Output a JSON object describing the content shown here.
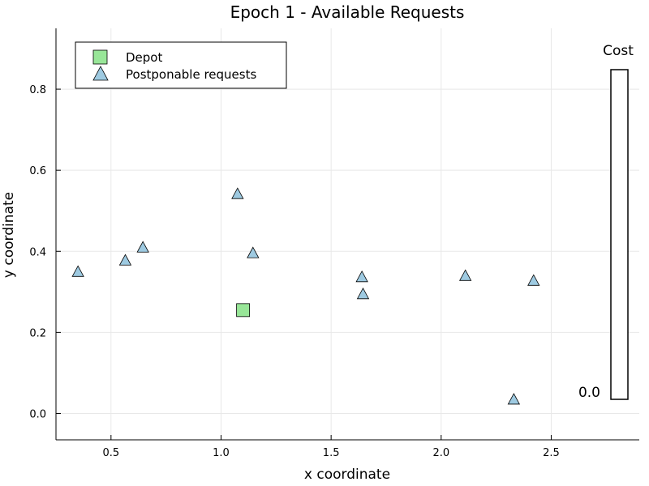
{
  "chart_data": {
    "type": "scatter",
    "title": "Epoch 1 - Available Requests",
    "xlabel": "x coordinate",
    "ylabel": "y coordinate",
    "xlim": [
      0.25,
      2.9
    ],
    "ylim": [
      -0.065,
      0.95
    ],
    "xticks": [
      0.5,
      1.0,
      1.5,
      2.0,
      2.5
    ],
    "xtick_labels": [
      "0.5",
      "1.0",
      "1.5",
      "2.0",
      "2.5"
    ],
    "yticks": [
      0.0,
      0.2,
      0.4,
      0.6,
      0.8
    ],
    "ytick_labels": [
      "0.0",
      "0.2",
      "0.4",
      "0.6",
      "0.8"
    ],
    "grid": true,
    "legend_position": "top-left",
    "series": [
      {
        "name": "Depot",
        "marker": "square",
        "color": "#98e698",
        "points": [
          [
            1.1,
            0.255
          ]
        ]
      },
      {
        "name": "Postponable requests",
        "marker": "triangle",
        "color": "#9ecae1",
        "points": [
          [
            0.35,
            0.35
          ],
          [
            0.565,
            0.378
          ],
          [
            0.645,
            0.41
          ],
          [
            1.075,
            0.542
          ],
          [
            1.145,
            0.396
          ],
          [
            1.64,
            0.337
          ],
          [
            1.645,
            0.295
          ],
          [
            2.11,
            0.34
          ],
          [
            2.42,
            0.328
          ],
          [
            2.33,
            0.035
          ]
        ]
      }
    ],
    "colorbar": {
      "label": "Cost",
      "tick_label": "0.0"
    }
  }
}
